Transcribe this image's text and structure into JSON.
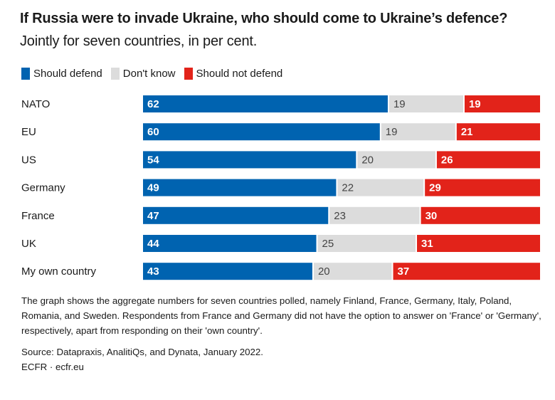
{
  "chart_data": {
    "type": "bar",
    "orientation": "horizontal",
    "stacked": true,
    "title": "If Russia were to invade Ukraine, who should come to Ukraine’s defence?",
    "subtitle": "Jointly for seven countries, in per cent.",
    "xlabel": "",
    "ylabel": "",
    "xlim": [
      0,
      100
    ],
    "grid": false,
    "legend_position": "top-left",
    "categories": [
      "NATO",
      "EU",
      "US",
      "Germany",
      "France",
      "UK",
      "My own country"
    ],
    "series": [
      {
        "name": "Should defend",
        "color": "#0063B0",
        "label_color": "#ffffff",
        "values": [
          62,
          60,
          54,
          49,
          47,
          44,
          43
        ]
      },
      {
        "name": "Don't know",
        "color": "#DCDCDC",
        "label_color": "#444444",
        "values": [
          19,
          19,
          20,
          22,
          23,
          25,
          20
        ]
      },
      {
        "name": "Should not defend",
        "color": "#E2231A",
        "label_color": "#ffffff",
        "values": [
          19,
          21,
          26,
          29,
          30,
          31,
          37
        ]
      }
    ]
  },
  "header": {
    "title_bold": "If Russia were to invade Ukraine, who should come to Ukraine’s defence?",
    "title_rest": "Jointly for seven countries, in per cent."
  },
  "legend": [
    {
      "label": "Should defend",
      "color": "#0063B0"
    },
    {
      "label": "Don't know",
      "color": "#DCDCDC"
    },
    {
      "label": "Should not defend",
      "color": "#E2231A"
    }
  ],
  "footer": {
    "note": "The graph shows the aggregate numbers for seven countries polled, namely Finland, France, Germany, Italy, Poland, Romania, and Sweden. Respondents from France and Germany did not have the option to answer on 'France' or 'Germany', respectively, apart from responding on their 'own country'.",
    "source": "Source: Datapraxis, AnalitiQs, and Dynata, January 2022.",
    "credit": "ECFR · ecfr.eu"
  }
}
